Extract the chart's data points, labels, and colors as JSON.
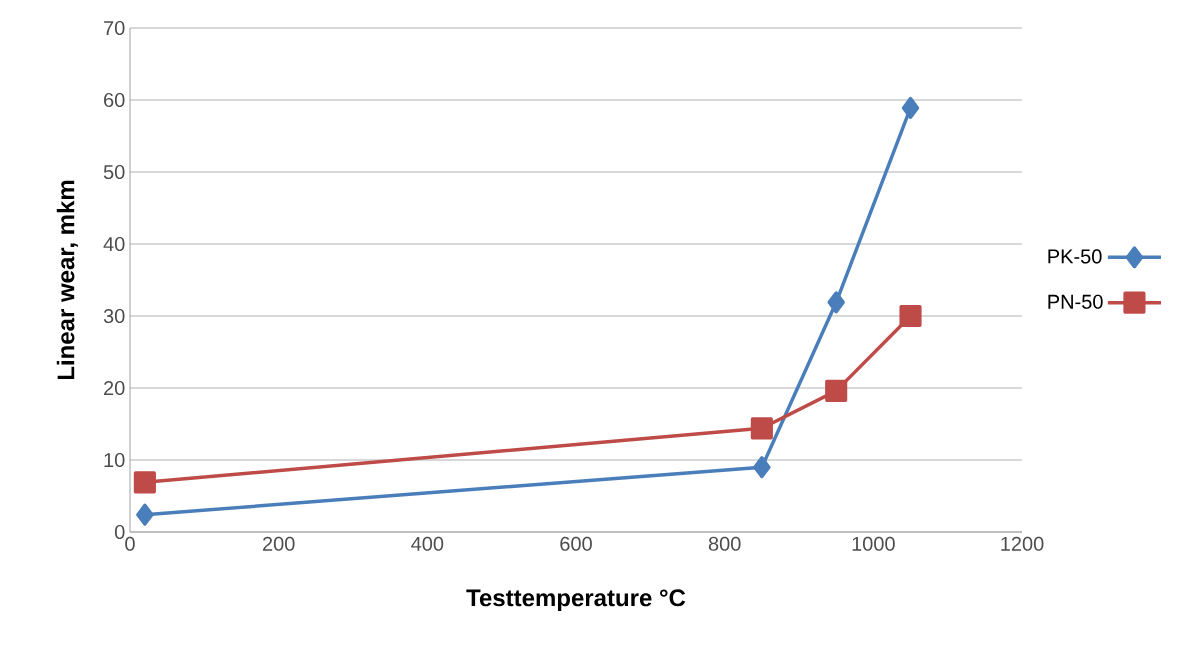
{
  "chart_data": {
    "type": "line",
    "xlabel": "Testtemperature °C",
    "ylabel": "Linear wear, mkm",
    "xlim": [
      0,
      1200
    ],
    "xticks": [
      0,
      200,
      400,
      600,
      800,
      1000,
      1200
    ],
    "ylim": [
      0,
      70
    ],
    "yticks": [
      0,
      10,
      20,
      30,
      40,
      50,
      60,
      70
    ],
    "grid": "y",
    "legend": "right",
    "line_style": "solid",
    "series": [
      {
        "name": "PK-50",
        "color": "#4a7ebb",
        "marker": "diamond",
        "x": [
          20,
          850,
          950,
          1050
        ],
        "values": [
          2.4,
          9.0,
          31.9,
          58.9
        ]
      },
      {
        "name": "PN-50",
        "color": "#be4b48",
        "marker": "square",
        "x": [
          20,
          850,
          950,
          1050
        ],
        "values": [
          6.9,
          14.4,
          19.6,
          30.0
        ]
      }
    ]
  }
}
